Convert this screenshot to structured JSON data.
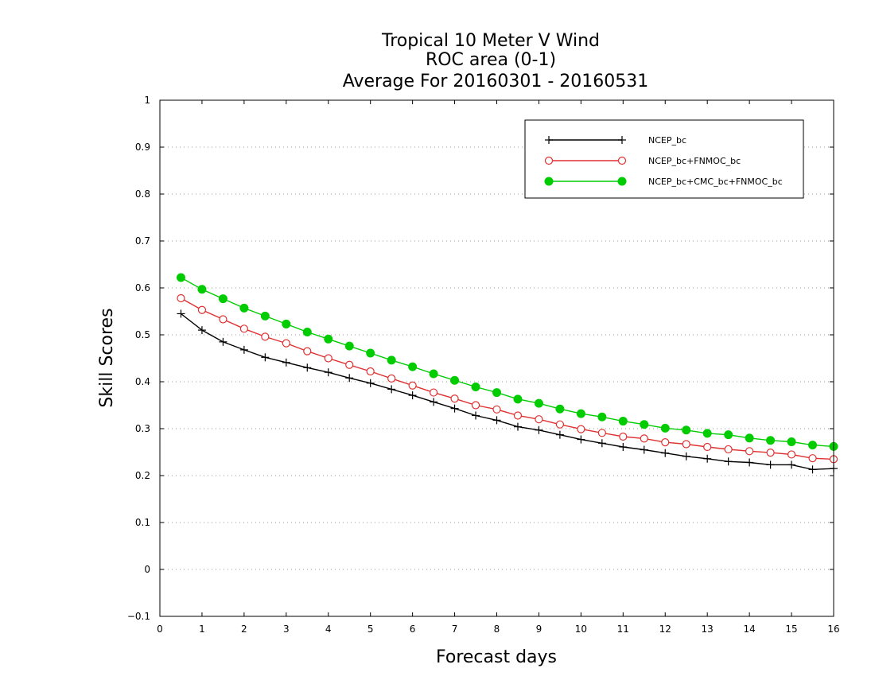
{
  "chart_data": {
    "type": "line",
    "title": [
      "Tropical 10 Meter V Wind",
      "ROC area (0-1)",
      "Average For 20160301 - 20160531"
    ],
    "xlabel": "Forecast days",
    "ylabel": "Skill Scores",
    "xlim": [
      0,
      16
    ],
    "ylim": [
      -0.1,
      1
    ],
    "xticks": [
      "0",
      "1",
      "2",
      "3",
      "4",
      "5",
      "6",
      "7",
      "8",
      "9",
      "10",
      "11",
      "12",
      "13",
      "14",
      "15",
      "16"
    ],
    "yticks": [
      "−0.1",
      "0",
      "0.1",
      "0.2",
      "0.3",
      "0.4",
      "0.5",
      "0.6",
      "0.7",
      "0.8",
      "0.9",
      "1"
    ],
    "grid": true,
    "legend_position": "top-right",
    "x": [
      0.5,
      1,
      1.5,
      2,
      2.5,
      3,
      3.5,
      4,
      4.5,
      5,
      5.5,
      6,
      6.5,
      7,
      7.5,
      8,
      8.5,
      9,
      9.5,
      10,
      10.5,
      11,
      11.5,
      12,
      12.5,
      13,
      13.5,
      14,
      14.5,
      15,
      15.5,
      16
    ],
    "series": [
      {
        "name": "NCEP_bc",
        "color": "#000000",
        "marker": "plus",
        "values": [
          0.545,
          0.51,
          0.485,
          0.468,
          0.452,
          0.441,
          0.43,
          0.42,
          0.408,
          0.397,
          0.384,
          0.371,
          0.357,
          0.343,
          0.328,
          0.318,
          0.304,
          0.297,
          0.287,
          0.277,
          0.269,
          0.261,
          0.255,
          0.248,
          0.241,
          0.236,
          0.23,
          0.228,
          0.223,
          0.223,
          0.213,
          0.215
        ]
      },
      {
        "name": "NCEP_bc+FNMOC_bc",
        "color": "#e03030",
        "marker": "open-circle",
        "values": [
          0.578,
          0.553,
          0.533,
          0.513,
          0.496,
          0.482,
          0.465,
          0.45,
          0.436,
          0.422,
          0.407,
          0.392,
          0.377,
          0.364,
          0.35,
          0.341,
          0.328,
          0.32,
          0.309,
          0.299,
          0.291,
          0.283,
          0.279,
          0.271,
          0.267,
          0.261,
          0.256,
          0.252,
          0.249,
          0.245,
          0.237,
          0.235
        ]
      },
      {
        "name": "NCEP_bc+CMC_bc+FNMOC_bc",
        "color": "#00cc00",
        "marker": "filled-circle",
        "values": [
          0.622,
          0.597,
          0.577,
          0.557,
          0.54,
          0.523,
          0.506,
          0.491,
          0.476,
          0.461,
          0.446,
          0.432,
          0.417,
          0.403,
          0.389,
          0.377,
          0.363,
          0.354,
          0.342,
          0.332,
          0.325,
          0.316,
          0.309,
          0.301,
          0.297,
          0.29,
          0.287,
          0.28,
          0.275,
          0.272,
          0.265,
          0.262
        ]
      }
    ]
  }
}
